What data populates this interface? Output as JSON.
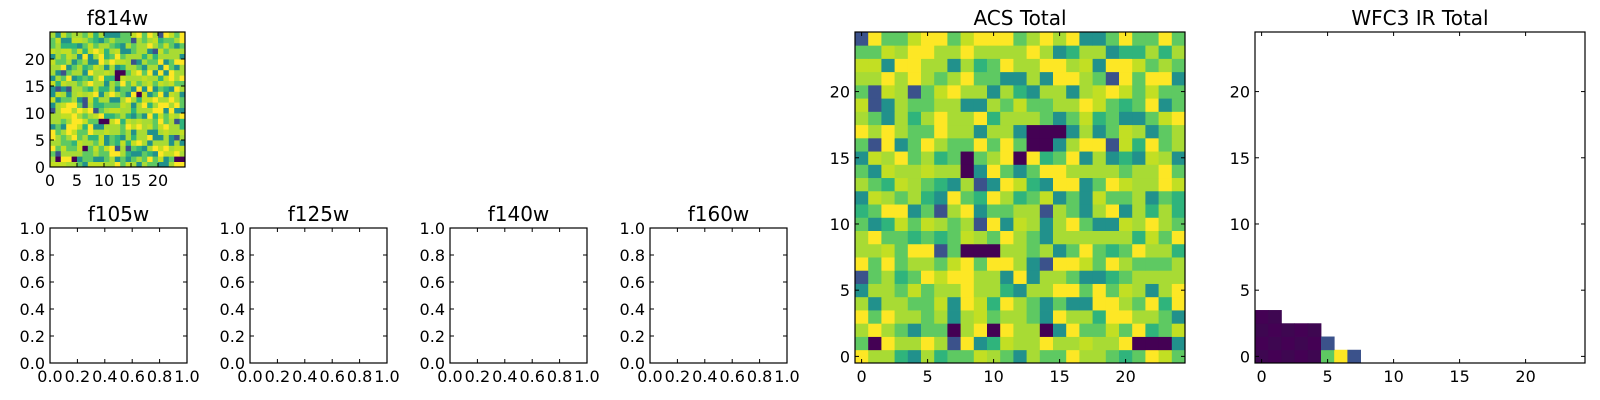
{
  "palette": [
    "#440154",
    "#3b528b",
    "#21918c",
    "#5ec962",
    "#a8db34",
    "#fde725"
  ],
  "chart_data": [
    {
      "type": "heatmap",
      "title": "f814w",
      "grid_size": 25,
      "xlim": [
        0,
        25
      ],
      "ylim": [
        0,
        25
      ],
      "xticks": [
        0,
        5,
        10,
        15,
        20
      ],
      "yticks": [
        0,
        5,
        10,
        15,
        20
      ],
      "values": "random-noise field, mostly 0.55–1.0 (green-yellow) with sparse dark-purple low pixels",
      "dark_pixels": [
        [
          1,
          1
        ],
        [
          4,
          1
        ],
        [
          9,
          8
        ],
        [
          10,
          8
        ],
        [
          12,
          17
        ],
        [
          13,
          17
        ],
        [
          12,
          16
        ],
        [
          23,
          1
        ],
        [
          24,
          1
        ],
        [
          16,
          13
        ],
        [
          6,
          3
        ]
      ]
    },
    {
      "type": "empty",
      "title": "f105w",
      "xlim": [
        0.0,
        1.0
      ],
      "ylim": [
        0.0,
        1.0
      ],
      "xticks": [
        "0.0",
        "0.2",
        "0.4",
        "0.6",
        "0.8",
        "1.0"
      ],
      "yticks": [
        "0.0",
        "0.2",
        "0.4",
        "0.6",
        "0.8",
        "1.0"
      ]
    },
    {
      "type": "empty",
      "title": "f125w",
      "xlim": [
        0.0,
        1.0
      ],
      "ylim": [
        0.0,
        1.0
      ],
      "xticks": [
        "0.0",
        "0.2",
        "0.4",
        "0.6",
        "0.8",
        "1.0"
      ],
      "yticks": [
        "0.0",
        "0.2",
        "0.4",
        "0.6",
        "0.8",
        "1.0"
      ]
    },
    {
      "type": "empty",
      "title": "f140w",
      "xlim": [
        0.0,
        1.0
      ],
      "ylim": [
        0.0,
        1.0
      ],
      "xticks": [
        "0.0",
        "0.2",
        "0.4",
        "0.6",
        "0.8",
        "1.0"
      ],
      "yticks": [
        "0.0",
        "0.2",
        "0.4",
        "0.6",
        "0.8",
        "1.0"
      ]
    },
    {
      "type": "empty",
      "title": "f160w",
      "xlim": [
        0.0,
        1.0
      ],
      "ylim": [
        0.0,
        1.0
      ],
      "xticks": [
        "0.0",
        "0.2",
        "0.4",
        "0.6",
        "0.8",
        "1.0"
      ],
      "yticks": [
        "0.0",
        "0.2",
        "0.4",
        "0.6",
        "0.8",
        "1.0"
      ]
    },
    {
      "type": "heatmap",
      "title": "ACS Total",
      "grid_size": 25,
      "xlim": [
        -0.5,
        24.5
      ],
      "ylim": [
        -0.5,
        24.5
      ],
      "xticks": [
        0,
        5,
        10,
        15,
        20
      ],
      "yticks": [
        0,
        5,
        10,
        15,
        20
      ],
      "dark_pixels": [
        [
          1,
          1
        ],
        [
          7,
          2
        ],
        [
          10,
          2
        ],
        [
          14,
          2
        ],
        [
          21,
          1
        ],
        [
          22,
          1
        ],
        [
          23,
          1
        ],
        [
          8,
          8
        ],
        [
          9,
          8
        ],
        [
          10,
          8
        ],
        [
          8,
          14
        ],
        [
          8,
          15
        ],
        [
          12,
          15
        ],
        [
          13,
          17
        ],
        [
          14,
          17
        ],
        [
          15,
          17
        ],
        [
          13,
          16
        ],
        [
          14,
          16
        ]
      ]
    },
    {
      "type": "heatmap",
      "title": "WFC3 IR Total",
      "grid_size": 25,
      "xlim": [
        -0.5,
        24.5
      ],
      "ylim": [
        -0.5,
        24.5
      ],
      "xticks": [
        0,
        5,
        10,
        15,
        20
      ],
      "yticks": [
        0,
        5,
        10,
        15,
        20
      ],
      "nonzero_cells": [
        {
          "x": 0,
          "y": 0,
          "level": 0
        },
        {
          "x": 1,
          "y": 0,
          "level": 0
        },
        {
          "x": 2,
          "y": 0,
          "level": 0
        },
        {
          "x": 3,
          "y": 0,
          "level": 0
        },
        {
          "x": 4,
          "y": 0,
          "level": 0
        },
        {
          "x": 5,
          "y": 0,
          "level": 3
        },
        {
          "x": 6,
          "y": 0,
          "level": 5
        },
        {
          "x": 7,
          "y": 0,
          "level": 1
        },
        {
          "x": 0,
          "y": 1,
          "level": 0
        },
        {
          "x": 1,
          "y": 1,
          "level": 0
        },
        {
          "x": 2,
          "y": 1,
          "level": 0
        },
        {
          "x": 3,
          "y": 1,
          "level": 0
        },
        {
          "x": 4,
          "y": 1,
          "level": 0
        },
        {
          "x": 5,
          "y": 1,
          "level": 1
        },
        {
          "x": 0,
          "y": 2,
          "level": 0
        },
        {
          "x": 1,
          "y": 2,
          "level": 0
        },
        {
          "x": 2,
          "y": 2,
          "level": 0
        },
        {
          "x": 3,
          "y": 2,
          "level": 0
        },
        {
          "x": 4,
          "y": 2,
          "level": 0
        },
        {
          "x": 0,
          "y": 3,
          "level": 0
        },
        {
          "x": 1,
          "y": 3,
          "level": 0
        }
      ]
    }
  ]
}
